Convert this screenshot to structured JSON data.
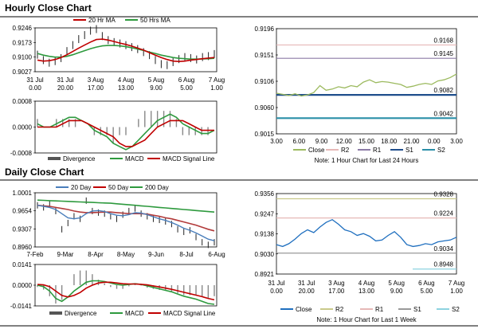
{
  "hourly_title": "Hourly Close Chart",
  "daily_title": "Daily Close Chart",
  "colors": {
    "close": "#9cba5f",
    "r2": "#e6b8b7",
    "r1": "#8b7aa6",
    "s1": "#1f4e8c",
    "s2": "#2a8fa8",
    "ma20": "#c00000",
    "ma50": "#2e9a3e",
    "ma200": "#2e9a3e",
    "price": "#222222",
    "macd": "#2e9a3e",
    "signal": "#c00000",
    "dclose": "#1f6fbf",
    "dr2": "#c9c98a",
    "dr1": "#e6b8b7",
    "ds1": "#999999",
    "ds2": "#8dd3e0"
  },
  "chart_data": [
    {
      "id": "hourly_price",
      "type": "line",
      "legend": [
        "20 Hr MA",
        "50 Hrs MA"
      ],
      "y_ticks": [
        "0.9246",
        "0.9173",
        "0.9100",
        "0.9027"
      ],
      "ylim": [
        0.9027,
        0.9246
      ],
      "x_ticks": [
        [
          "31 Jul",
          "0.00"
        ],
        [
          "31 Jul",
          "20.00"
        ],
        [
          "3 Aug",
          "17.00"
        ],
        [
          "4 Aug",
          "13.00"
        ],
        [
          "5 Aug",
          "9.00"
        ],
        [
          "6 Aug",
          "5.00"
        ],
        [
          "7 Aug",
          "1.00"
        ]
      ],
      "series": [
        {
          "name": "Close",
          "values": [
            0.9112,
            0.9085,
            0.9072,
            0.908,
            0.9095,
            0.913,
            0.916,
            0.919,
            0.921,
            0.9232,
            0.924,
            0.9205,
            0.9185,
            0.9175,
            0.9168,
            0.916,
            0.915,
            0.914,
            0.9125,
            0.911,
            0.9085,
            0.9065,
            0.906,
            0.9075,
            0.909,
            0.91,
            0.9095,
            0.9088,
            0.91,
            0.9105,
            0.9115
          ]
        },
        {
          "name": "20 Hr MA",
          "values": [
            0.9085,
            0.908,
            0.9082,
            0.9088,
            0.9098,
            0.9112,
            0.9128,
            0.9145,
            0.916,
            0.9175,
            0.9188,
            0.919,
            0.9185,
            0.9178,
            0.917,
            0.9163,
            0.9155,
            0.9145,
            0.9135,
            0.9122,
            0.911,
            0.9098,
            0.9088,
            0.908,
            0.9078,
            0.908,
            0.9085,
            0.9088,
            0.9092,
            0.9095,
            0.9098
          ]
        },
        {
          "name": "50 Hrs MA",
          "values": [
            0.9118,
            0.911,
            0.9104,
            0.91,
            0.91,
            0.9104,
            0.9112,
            0.9122,
            0.9132,
            0.9142,
            0.915,
            0.9156,
            0.9158,
            0.9158,
            0.9156,
            0.9152,
            0.9147,
            0.914,
            0.9133,
            0.9125,
            0.9118,
            0.911,
            0.9104,
            0.9098,
            0.9094,
            0.9092,
            0.909,
            0.909,
            0.9091,
            0.9092,
            0.9094
          ]
        }
      ]
    },
    {
      "id": "hourly_macd",
      "type": "line",
      "legend": [
        "Divergence",
        "MACD",
        "MACD Signal Line"
      ],
      "y_ticks": [
        "0.0008",
        "0.0000",
        "-0.0008"
      ],
      "ylim": [
        -0.0008,
        0.0008
      ],
      "series": [
        {
          "name": "MACD",
          "values": [
            0.0001,
            0.0,
            0.0,
            0.0001,
            0.0002,
            0.0003,
            0.0003,
            0.0002,
            0.0001,
            -0.0001,
            -0.0002,
            -0.0003,
            -0.0005,
            -0.0006,
            -0.0007,
            -0.0006,
            -0.0004,
            -0.0002,
            0.0,
            0.0002,
            0.0003,
            0.0004,
            0.0003,
            0.0001,
            0.0,
            -0.0001,
            -0.0002,
            -0.0002,
            -0.0001
          ]
        },
        {
          "name": "MACD Signal Line",
          "values": [
            0.0,
            0.0,
            0.0,
            0.0,
            0.0001,
            0.0002,
            0.0002,
            0.0002,
            0.0001,
            0.0,
            -0.0001,
            -0.0002,
            -0.0003,
            -0.0005,
            -0.0006,
            -0.0006,
            -0.0005,
            -0.0004,
            -0.0002,
            0.0,
            0.0001,
            0.0002,
            0.0002,
            0.0002,
            0.0001,
            0.0,
            -0.0001,
            -0.0001,
            -0.0001
          ]
        }
      ]
    },
    {
      "id": "hourly_pivot",
      "type": "line",
      "y_ticks": [
        "0.9196",
        "0.9151",
        "0.9106",
        "0.9060",
        "0.9015"
      ],
      "ylim": [
        0.9015,
        0.9196
      ],
      "x_ticks": [
        "3.00",
        "6.00",
        "9.00",
        "12.00",
        "15.00",
        "18.00",
        "21.00",
        "0.00",
        "3.00"
      ],
      "levels": {
        "R2": 0.9168,
        "R1": 0.9145,
        "S1": 0.9082,
        "S2": 0.9042
      },
      "level_labels": {
        "R2": "0.9168",
        "R1": "0.9145",
        "S1": "0.9082",
        "S2": "0.9042"
      },
      "series": [
        {
          "name": "Close",
          "values": [
            0.9085,
            0.9083,
            0.9081,
            0.9084,
            0.908,
            0.9082,
            0.9086,
            0.9098,
            0.909,
            0.9092,
            0.9096,
            0.9094,
            0.9098,
            0.9096,
            0.9104,
            0.9108,
            0.9103,
            0.9105,
            0.9104,
            0.9102,
            0.91,
            0.9095,
            0.9097,
            0.91,
            0.9102,
            0.91,
            0.9106,
            0.9108,
            0.9112,
            0.9118
          ]
        }
      ],
      "legend": [
        "Close",
        "R2",
        "R1",
        "S1",
        "S2"
      ],
      "note": "Note: 1 Hour Chart for Last 24 Hours"
    },
    {
      "id": "daily_price",
      "type": "line",
      "legend": [
        "20 Day",
        "50 Day",
        "200 Day"
      ],
      "y_ticks": [
        "1.0001",
        "0.9654",
        "0.9307",
        "0.8960"
      ],
      "ylim": [
        0.896,
        1.0001
      ],
      "x_ticks": [
        "7-Feb",
        "9-Mar",
        "8-Apr",
        "8-May",
        "9-Jun",
        "8-Jul",
        "6-Aug"
      ],
      "series": [
        {
          "name": "Close",
          "values": [
            0.976,
            0.972,
            0.978,
            0.965,
            0.93,
            0.942,
            0.955,
            0.95,
            0.985,
            0.965,
            0.962,
            0.96,
            0.955,
            0.95,
            0.958,
            0.965,
            0.97,
            0.96,
            0.955,
            0.95,
            0.948,
            0.945,
            0.94,
            0.93,
            0.925,
            0.928,
            0.915,
            0.905,
            0.9,
            0.905
          ]
        },
        {
          "name": "20 Day",
          "values": [
            0.976,
            0.974,
            0.972,
            0.968,
            0.96,
            0.952,
            0.95,
            0.952,
            0.96,
            0.965,
            0.966,
            0.964,
            0.96,
            0.957,
            0.956,
            0.958,
            0.962,
            0.961,
            0.958,
            0.954,
            0.95,
            0.947,
            0.943,
            0.938,
            0.932,
            0.928,
            0.923,
            0.917,
            0.911,
            0.908
          ]
        },
        {
          "name": "50 Day",
          "values": [
            0.976,
            0.975,
            0.974,
            0.972,
            0.97,
            0.968,
            0.965,
            0.963,
            0.962,
            0.962,
            0.9625,
            0.963,
            0.963,
            0.962,
            0.961,
            0.96,
            0.96,
            0.96,
            0.959,
            0.957,
            0.955,
            0.952,
            0.95,
            0.947,
            0.944,
            0.941,
            0.938,
            0.934,
            0.93,
            0.927
          ]
        },
        {
          "name": "200 Day",
          "values": [
            0.986,
            0.9855,
            0.985,
            0.9845,
            0.984,
            0.9835,
            0.983,
            0.9825,
            0.982,
            0.9815,
            0.981,
            0.9805,
            0.98,
            0.979,
            0.978,
            0.977,
            0.976,
            0.975,
            0.974,
            0.973,
            0.972,
            0.971,
            0.97,
            0.969,
            0.968,
            0.967,
            0.966,
            0.965,
            0.964,
            0.963
          ]
        }
      ]
    },
    {
      "id": "daily_macd",
      "type": "line",
      "legend": [
        "Divergence",
        "MACD",
        "MACD Signal Line"
      ],
      "y_ticks": [
        "0.0141",
        "0.0000",
        "-0.0141"
      ],
      "ylim": [
        -0.0141,
        0.0141
      ],
      "series": [
        {
          "name": "MACD",
          "values": [
            0.0,
            -0.001,
            -0.004,
            -0.009,
            -0.011,
            -0.008,
            -0.004,
            -0.001,
            0.002,
            0.003,
            0.003,
            0.0025,
            0.0015,
            0.0005,
            0.0,
            0.0005,
            0.001,
            0.0005,
            -0.0005,
            -0.0015,
            -0.0025,
            -0.0035,
            -0.0045,
            -0.006,
            -0.0075,
            -0.0085,
            -0.0095,
            -0.011,
            -0.0125,
            -0.013
          ]
        },
        {
          "name": "MACD Signal Line",
          "values": [
            0.0005,
            0.0002,
            -0.001,
            -0.004,
            -0.007,
            -0.008,
            -0.007,
            -0.005,
            -0.002,
            0.0,
            0.0015,
            0.002,
            0.002,
            0.0015,
            0.001,
            0.0008,
            0.0008,
            0.0006,
            0.0002,
            -0.0005,
            -0.0012,
            -0.002,
            -0.0028,
            -0.0038,
            -0.0048,
            -0.0058,
            -0.0068,
            -0.0078,
            -0.009,
            -0.01
          ]
        }
      ]
    },
    {
      "id": "daily_pivot",
      "type": "line",
      "y_ticks": [
        "0.9356",
        "0.9247",
        "0.9138",
        "0.9030",
        "0.8921"
      ],
      "ylim": [
        0.8921,
        0.9356
      ],
      "x_ticks": [
        [
          "31 Jul",
          "0.00"
        ],
        [
          "31 Jul",
          "20.00"
        ],
        [
          "3 Aug",
          "17.00"
        ],
        [
          "4 Aug",
          "13.00"
        ],
        [
          "5 Aug",
          "9.00"
        ],
        [
          "6 Aug",
          "5.00"
        ],
        [
          "7 Aug",
          "1.00"
        ]
      ],
      "levels": {
        "R2": 0.9328,
        "R1": 0.9224,
        "S1": 0.9034,
        "S2": 0.8948
      },
      "level_labels": {
        "R2": "0.9328",
        "R1": "0.9224",
        "S1": "0.9034",
        "S2": "0.8948"
      },
      "series": [
        {
          "name": "Close",
          "values": [
            0.908,
            0.907,
            0.9085,
            0.911,
            0.914,
            0.916,
            0.9145,
            0.9175,
            0.92,
            0.9215,
            0.919,
            0.916,
            0.915,
            0.913,
            0.914,
            0.9125,
            0.91,
            0.9105,
            0.913,
            0.915,
            0.912,
            0.908,
            0.907,
            0.9075,
            0.9085,
            0.908,
            0.9095,
            0.91,
            0.9105,
            0.912
          ]
        }
      ],
      "legend": [
        "Close",
        "R2",
        "R1",
        "S1",
        "S2"
      ],
      "note": "Note: 1 Hour Chart for Last 1 Week"
    }
  ]
}
